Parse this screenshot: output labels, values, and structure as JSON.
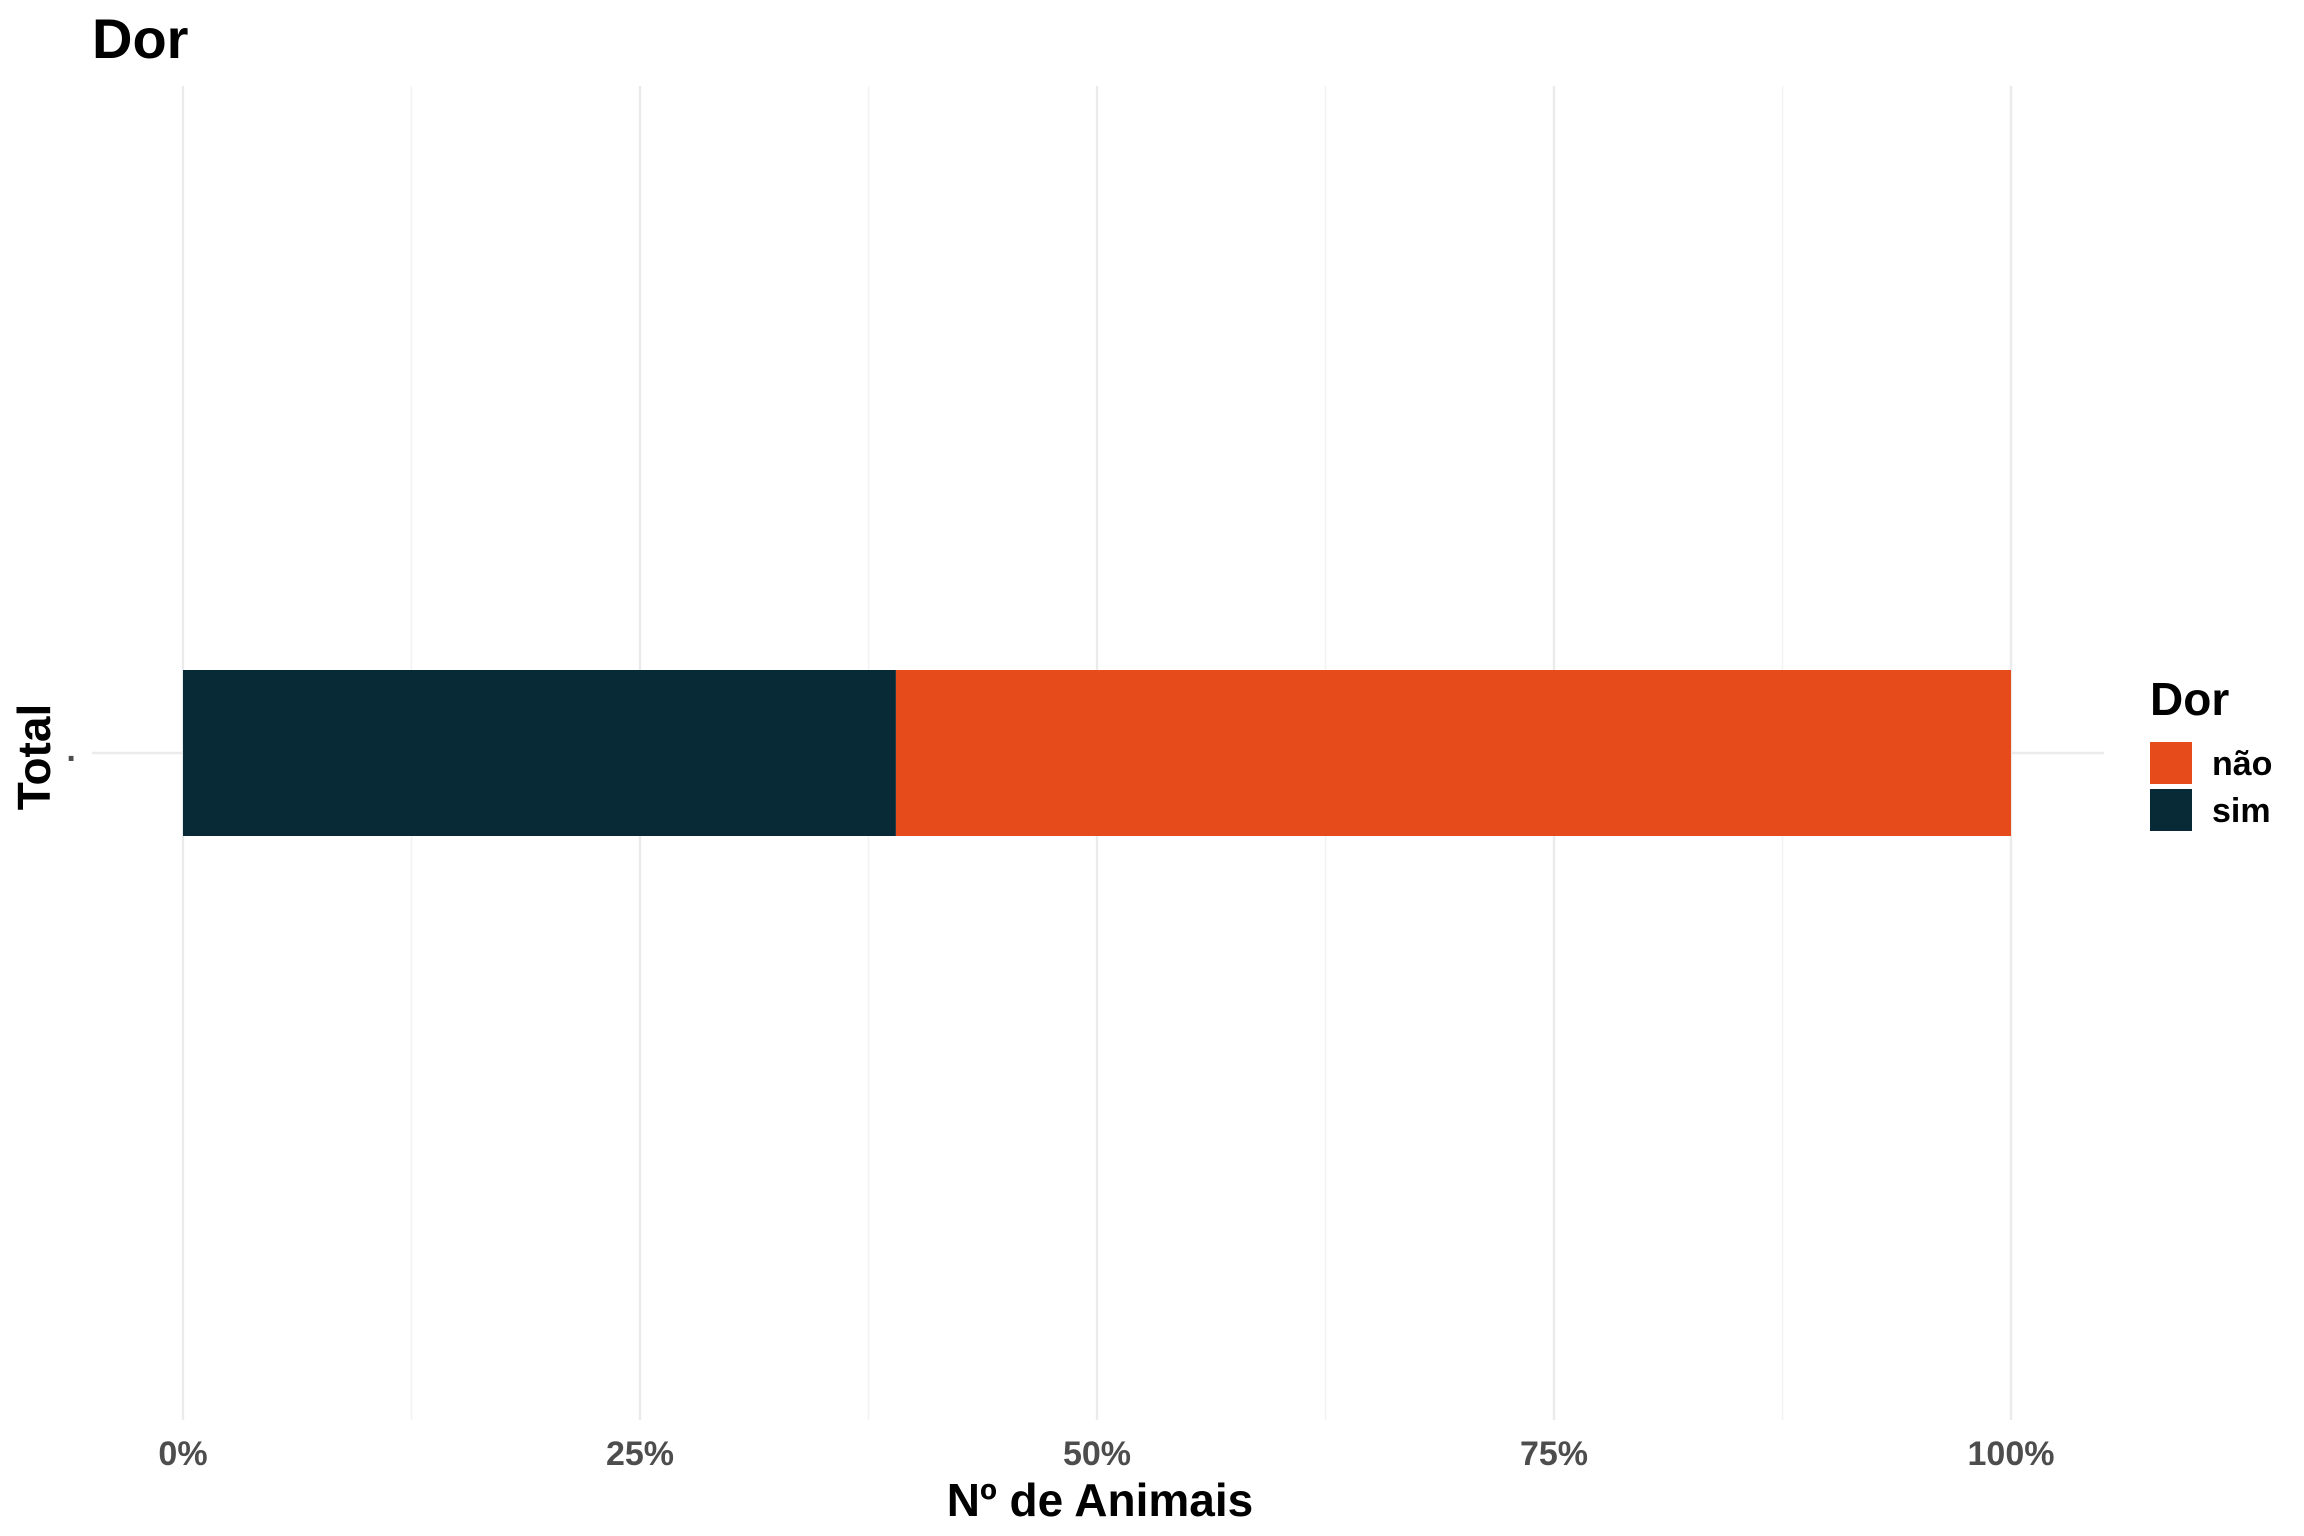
{
  "chart_data": {
    "type": "bar",
    "orientation": "horizontal",
    "stacked": "percent",
    "title": "Dor",
    "xlabel": "Nº de Animais",
    "ylabel": "Total",
    "categories": [
      ""
    ],
    "xlim": [
      0,
      1
    ],
    "xticks": [
      0,
      0.25,
      0.5,
      0.75,
      1
    ],
    "xtick_labels": [
      "0%",
      "25%",
      "50%",
      "75%",
      "100%"
    ],
    "grid": true,
    "legend": {
      "title": "Dor",
      "position": "right",
      "entries": [
        "não",
        "sim"
      ]
    },
    "series": [
      {
        "name": "sim",
        "values": [
          0.39
        ],
        "color": "#082a37"
      },
      {
        "name": "não",
        "values": [
          0.61
        ],
        "color": "#e64b1c"
      }
    ]
  }
}
